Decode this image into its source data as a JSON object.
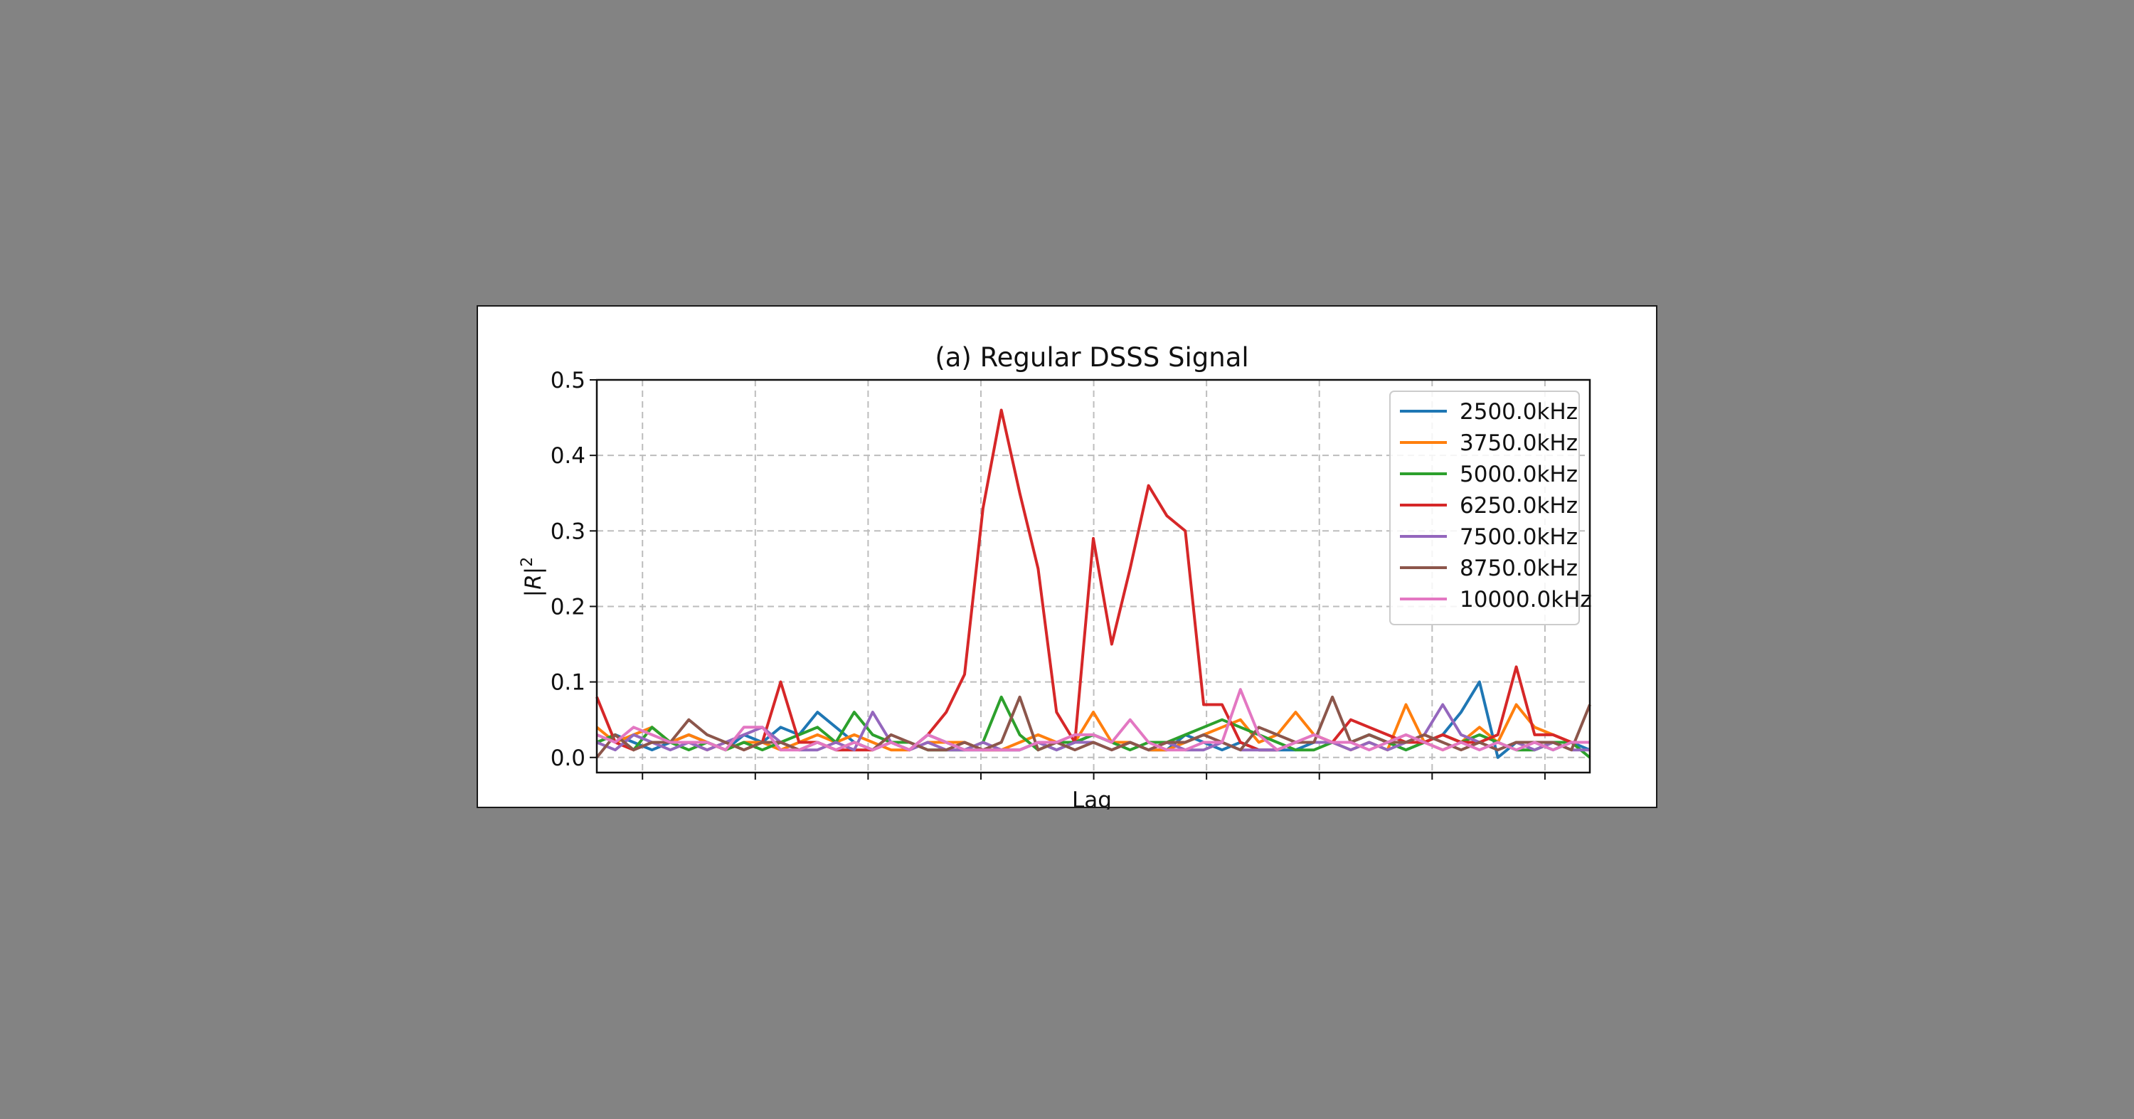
{
  "chart_data": {
    "type": "line",
    "title": "(a) Regular DSSS Signal",
    "xlabel": "Lag",
    "ylabel": "|R|²",
    "ylim": [
      -0.02,
      0.5
    ],
    "yticks": [
      "0.0",
      "0.1",
      "0.2",
      "0.3",
      "0.4",
      "0.5"
    ],
    "grid": true,
    "legend_position": "top-right",
    "series": [
      {
        "name": "2500.0kHz",
        "color": "#1f77b4",
        "values": [
          0.02,
          0.03,
          0.02,
          0.01,
          0.02,
          0.03,
          0.02,
          0.01,
          0.03,
          0.02,
          0.04,
          0.03,
          0.06,
          0.04,
          0.02,
          0.01,
          0.02,
          0.01,
          0.03,
          0.02,
          0.01,
          0.01,
          0.01,
          0.01,
          0.02,
          0.01,
          0.02,
          0.03,
          0.02,
          0.02,
          0.01,
          0.01,
          0.03,
          0.02,
          0.01,
          0.02,
          0.01,
          0.01,
          0.01,
          0.02,
          0.02,
          0.02,
          0.03,
          0.02,
          0.01,
          0.02,
          0.03,
          0.06,
          0.1,
          0.0,
          0.02,
          0.02,
          0.01,
          0.02,
          0.01
        ]
      },
      {
        "name": "3750.0kHz",
        "color": "#ff7f0e",
        "values": [
          0.04,
          0.02,
          0.03,
          0.04,
          0.02,
          0.03,
          0.02,
          0.01,
          0.02,
          0.02,
          0.01,
          0.02,
          0.03,
          0.02,
          0.03,
          0.02,
          0.01,
          0.01,
          0.02,
          0.02,
          0.02,
          0.01,
          0.01,
          0.02,
          0.03,
          0.02,
          0.02,
          0.06,
          0.02,
          0.02,
          0.01,
          0.01,
          0.02,
          0.03,
          0.04,
          0.05,
          0.02,
          0.03,
          0.06,
          0.03,
          0.02,
          0.01,
          0.02,
          0.01,
          0.07,
          0.02,
          0.01,
          0.02,
          0.04,
          0.02,
          0.07,
          0.04,
          0.03,
          0.02,
          0.02
        ]
      },
      {
        "name": "5000.0kHz",
        "color": "#2ca02c",
        "values": [
          0.02,
          0.03,
          0.01,
          0.04,
          0.02,
          0.01,
          0.02,
          0.01,
          0.02,
          0.01,
          0.02,
          0.03,
          0.04,
          0.02,
          0.06,
          0.03,
          0.02,
          0.02,
          0.01,
          0.01,
          0.01,
          0.02,
          0.08,
          0.03,
          0.01,
          0.02,
          0.02,
          0.03,
          0.02,
          0.01,
          0.02,
          0.02,
          0.03,
          0.04,
          0.05,
          0.04,
          0.03,
          0.02,
          0.01,
          0.01,
          0.02,
          0.02,
          0.03,
          0.02,
          0.01,
          0.02,
          0.03,
          0.02,
          0.03,
          0.02,
          0.01,
          0.01,
          0.02,
          0.02,
          0.0
        ]
      },
      {
        "name": "6250.0kHz",
        "color": "#d62728",
        "values": [
          0.08,
          0.02,
          0.01,
          0.02,
          0.02,
          0.02,
          0.01,
          0.02,
          0.01,
          0.02,
          0.1,
          0.02,
          0.02,
          0.01,
          0.01,
          0.01,
          0.02,
          0.01,
          0.03,
          0.06,
          0.11,
          0.33,
          0.46,
          0.35,
          0.25,
          0.06,
          0.02,
          0.29,
          0.15,
          0.25,
          0.36,
          0.32,
          0.3,
          0.07,
          0.07,
          0.02,
          0.01,
          0.01,
          0.02,
          0.02,
          0.02,
          0.05,
          0.04,
          0.03,
          0.02,
          0.02,
          0.03,
          0.02,
          0.02,
          0.03,
          0.12,
          0.03,
          0.03,
          0.02,
          0.02
        ]
      },
      {
        "name": "7500.0kHz",
        "color": "#9467bd",
        "values": [
          0.02,
          0.01,
          0.03,
          0.02,
          0.01,
          0.02,
          0.01,
          0.02,
          0.03,
          0.04,
          0.02,
          0.01,
          0.01,
          0.02,
          0.01,
          0.06,
          0.02,
          0.01,
          0.02,
          0.01,
          0.01,
          0.02,
          0.01,
          0.01,
          0.02,
          0.01,
          0.02,
          0.02,
          0.01,
          0.02,
          0.01,
          0.02,
          0.01,
          0.01,
          0.02,
          0.01,
          0.01,
          0.01,
          0.02,
          0.02,
          0.02,
          0.01,
          0.02,
          0.01,
          0.02,
          0.03,
          0.07,
          0.03,
          0.02,
          0.01,
          0.02,
          0.01,
          0.02,
          0.01,
          0.01
        ]
      },
      {
        "name": "8750.0kHz",
        "color": "#8c564b",
        "values": [
          0.0,
          0.03,
          0.01,
          0.02,
          0.02,
          0.05,
          0.03,
          0.02,
          0.01,
          0.02,
          0.02,
          0.01,
          0.02,
          0.01,
          0.02,
          0.01,
          0.03,
          0.02,
          0.01,
          0.01,
          0.02,
          0.01,
          0.02,
          0.08,
          0.01,
          0.02,
          0.01,
          0.02,
          0.01,
          0.02,
          0.01,
          0.02,
          0.02,
          0.03,
          0.02,
          0.01,
          0.04,
          0.03,
          0.02,
          0.02,
          0.08,
          0.02,
          0.03,
          0.02,
          0.02,
          0.03,
          0.02,
          0.01,
          0.02,
          0.01,
          0.02,
          0.02,
          0.02,
          0.01,
          0.07
        ]
      },
      {
        "name": "10000.0kHz",
        "color": "#e377c2",
        "values": [
          0.03,
          0.02,
          0.04,
          0.03,
          0.02,
          0.02,
          0.02,
          0.01,
          0.04,
          0.04,
          0.01,
          0.01,
          0.02,
          0.01,
          0.02,
          0.01,
          0.02,
          0.01,
          0.03,
          0.02,
          0.01,
          0.01,
          0.01,
          0.01,
          0.02,
          0.02,
          0.03,
          0.03,
          0.02,
          0.05,
          0.02,
          0.01,
          0.01,
          0.02,
          0.02,
          0.09,
          0.03,
          0.01,
          0.02,
          0.03,
          0.02,
          0.02,
          0.01,
          0.02,
          0.03,
          0.02,
          0.01,
          0.02,
          0.01,
          0.02,
          0.01,
          0.02,
          0.01,
          0.02,
          0.02
        ]
      }
    ]
  }
}
